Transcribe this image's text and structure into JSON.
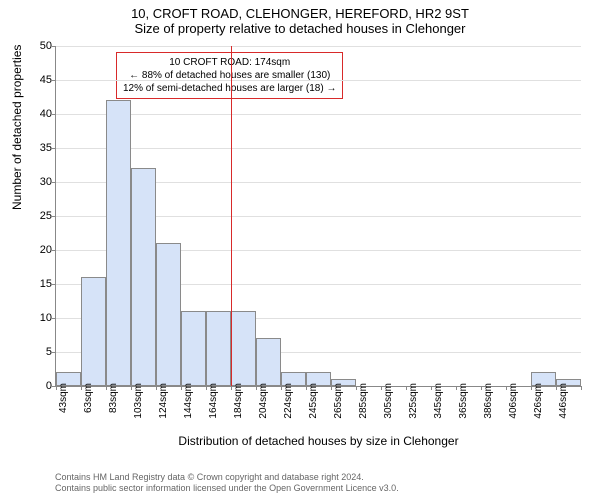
{
  "titles": {
    "line1": "10, CROFT ROAD, CLEHONGER, HEREFORD, HR2 9ST",
    "line2": "Size of property relative to detached houses in Clehonger"
  },
  "ylabel": "Number of detached properties",
  "xlabel": "Distribution of detached houses by size in Clehonger",
  "ylim": [
    0,
    50
  ],
  "ytick_step": 5,
  "chart": {
    "type": "bar",
    "bar_fill": "#d6e3f8",
    "bar_border": "#8a8a8a",
    "grid_color": "#e0e0e0",
    "categories": [
      "43sqm",
      "63sqm",
      "83sqm",
      "103sqm",
      "124sqm",
      "144sqm",
      "164sqm",
      "184sqm",
      "204sqm",
      "224sqm",
      "245sqm",
      "265sqm",
      "285sqm",
      "305sqm",
      "325sqm",
      "345sqm",
      "365sqm",
      "386sqm",
      "406sqm",
      "426sqm",
      "446sqm"
    ],
    "values": [
      2,
      16,
      42,
      32,
      21,
      11,
      11,
      11,
      7,
      2,
      2,
      1,
      0,
      0,
      0,
      0,
      0,
      0,
      0,
      2,
      1
    ]
  },
  "ref_line": {
    "color": "#d82a2a",
    "category_index": 7
  },
  "annotation": {
    "line1": "10 CROFT ROAD: 174sqm",
    "line2": "← 88% of detached houses are smaller (130)",
    "line3": "12% of semi-detached houses are larger (18) →",
    "border_color": "#d82a2a"
  },
  "footer": {
    "line1": "Contains HM Land Registry data © Crown copyright and database right 2024.",
    "line2": "Contains public sector information licensed under the Open Government Licence v3.0."
  }
}
